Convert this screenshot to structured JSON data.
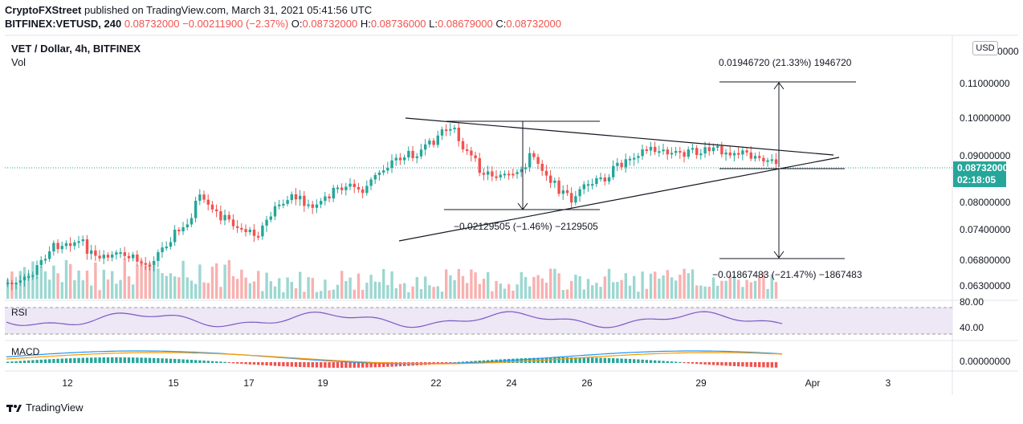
{
  "header": {
    "publisher": "CryptoFXStreet",
    "published_text": "published on TradingView.com, March 31, 2021 05:41:56 UTC",
    "symbol_line": "BITFINEX:VETUSD, 240",
    "last_price": "0.08732000",
    "change": "−0.00211900 (−2.37%)",
    "open_label": "O:",
    "open_value": "0.08732000",
    "high_label": "H:",
    "high_value": "0.08736000",
    "low_label": "L:",
    "low_value": "0.08679000",
    "close_label": "C:",
    "close_value": "0.08732000"
  },
  "legend": {
    "title": "VET / Dollar, 4h, BITFINEX",
    "volume": "Vol",
    "rsi": "RSI",
    "macd": "MACD"
  },
  "price_axis": {
    "currency_button": "USD",
    "labels": [
      "0.1 0000",
      "0.11000000",
      "0.10000000",
      "0.09000000",
      "0.08000000",
      "0.07400000",
      "0.06800000",
      "0.06300000"
    ],
    "current_price": "0.08732000",
    "countdown": "02:18:05",
    "rsi_labels": [
      "80.00",
      "40.00"
    ],
    "macd_label": "0.00000000"
  },
  "time_axis": {
    "labels": [
      "12",
      "15",
      "17",
      "19",
      "22",
      "24",
      "26",
      "29",
      "Apr",
      "3"
    ]
  },
  "annotations": {
    "upper_measure": "0.01946720 (21.33%) 1946720",
    "left_measure": "−0.02129505 (−1.46%) −2129505",
    "lower_measure": "−0.01867483 (−21.47%) −1867483"
  },
  "colors": {
    "up": "#26a69a",
    "down": "#ef5350",
    "rsi_line": "#7e57c2",
    "rsi_band": "#ede7f6",
    "macd_line": "#2196f3",
    "signal_line": "#ff9800",
    "price_tag": "#26a69a"
  },
  "footer": {
    "brand": "TradingView"
  }
}
